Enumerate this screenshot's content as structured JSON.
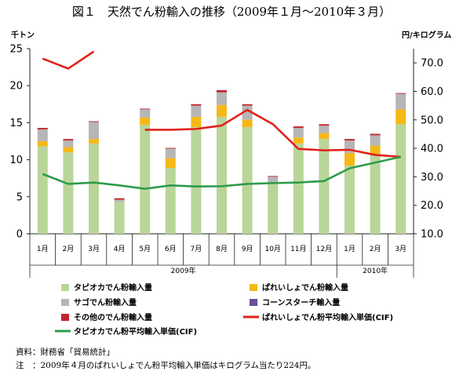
{
  "chart_data": {
    "type": "bar",
    "title": "図１　天然でん粉輸入の推移（2009年１月～2010年３月）",
    "y_left_unit": "千トン",
    "y_right_unit": "円/キログラム",
    "y_left_ticks": [
      "0",
      "5",
      "10",
      "15",
      "20",
      "25"
    ],
    "y_right_ticks": [
      "10.0",
      "20.0",
      "30.0",
      "40.0",
      "50.0",
      "60.0",
      "70.0"
    ],
    "ylim_left": [
      0,
      25
    ],
    "ylim_right": [
      10,
      75
    ],
    "categories": [
      "1月",
      "2月",
      "3月",
      "4月",
      "5月",
      "6月",
      "7月",
      "8月",
      "9月",
      "10月",
      "11月",
      "12月",
      "1月",
      "2月",
      "3月"
    ],
    "year_labels": [
      {
        "label": "2009年",
        "span": [
          0,
          11
        ]
      },
      {
        "label": "2010年",
        "span": [
          12,
          14
        ]
      }
    ],
    "bar_series": [
      {
        "name": "タピオカでん粉輸入量",
        "color": "#bad59a",
        "values": [
          11.8,
          11.0,
          12.2,
          4.3,
          14.7,
          8.9,
          14.4,
          15.8,
          14.4,
          7.0,
          12.2,
          12.8,
          9.2,
          10.8,
          14.8
        ]
      },
      {
        "name": "ぱれいしょでん粉輸入量",
        "color": "#f6b817",
        "values": [
          0.7,
          0.7,
          0.6,
          0.0,
          1.0,
          1.3,
          1.4,
          1.6,
          1.0,
          0.0,
          0.8,
          0.8,
          1.7,
          1.1,
          2.0
        ]
      },
      {
        "name": "サゴでん粉輸入量",
        "color": "#b6b6b6",
        "values": [
          1.6,
          0.9,
          2.3,
          0.3,
          1.1,
          1.3,
          1.5,
          1.7,
          1.9,
          0.7,
          1.3,
          1.0,
          1.7,
          1.4,
          2.1
        ]
      },
      {
        "name": "コーンスターチ輸入量",
        "color": "#6b4e98",
        "values": [
          0.0,
          0.0,
          0.0,
          0.0,
          0.0,
          0.0,
          0.0,
          0.0,
          0.0,
          0.0,
          0.0,
          0.0,
          0.0,
          0.0,
          0.0
        ]
      },
      {
        "name": "その他のでん粉輸入量",
        "color": "#c0272d",
        "values": [
          0.2,
          0.2,
          0.1,
          0.2,
          0.1,
          0.1,
          0.2,
          0.3,
          0.2,
          0.1,
          0.2,
          0.2,
          0.2,
          0.2,
          0.1
        ]
      }
    ],
    "line_series": [
      {
        "name": "ぱれいしょでん粉平均輸入単価(CIF)",
        "color": "#e0221b",
        "values": [
          71.5,
          68.0,
          74.0,
          null,
          46.5,
          46.5,
          46.8,
          48.0,
          53.5,
          48.5,
          39.8,
          39.3,
          39.5,
          37.7,
          37.0
        ]
      },
      {
        "name": "タピオカでん粉平均輸入単価(CIF)",
        "color": "#2e9b4a",
        "values": [
          31.0,
          27.5,
          28.0,
          27.0,
          25.8,
          27.0,
          26.6,
          26.7,
          27.5,
          27.8,
          28.0,
          28.5,
          33.0,
          35.0,
          37.0
        ]
      }
    ],
    "legend": [
      {
        "name": "タピオカでん粉輸入量",
        "kind": "bar",
        "color": "#bad59a"
      },
      {
        "name": "ぱれいしょでん粉輸入量",
        "kind": "bar",
        "color": "#f6b817"
      },
      {
        "name": "サゴでん粉輸入量",
        "kind": "bar",
        "color": "#b6b6b6"
      },
      {
        "name": "コーンスターチ輸入量",
        "kind": "bar",
        "color": "#6b4e98"
      },
      {
        "name": "その他のでん粉輸入量",
        "kind": "bar",
        "color": "#c0272d"
      },
      {
        "name": "ぱれいしょでん粉平均輸入単価(CIF)",
        "kind": "line",
        "color": "#e0221b"
      },
      {
        "name": "タピオカでん粉平均輸入単価(CIF)",
        "kind": "line",
        "color": "#2e9b4a"
      }
    ],
    "legend_placement": "bottom",
    "grid": false
  },
  "notes": {
    "source": "資料：財務省「貿易統計」",
    "note": "注　：2009年４月のぱれいしょでん粉平均輸入単価はキログラム当たり224円。"
  }
}
